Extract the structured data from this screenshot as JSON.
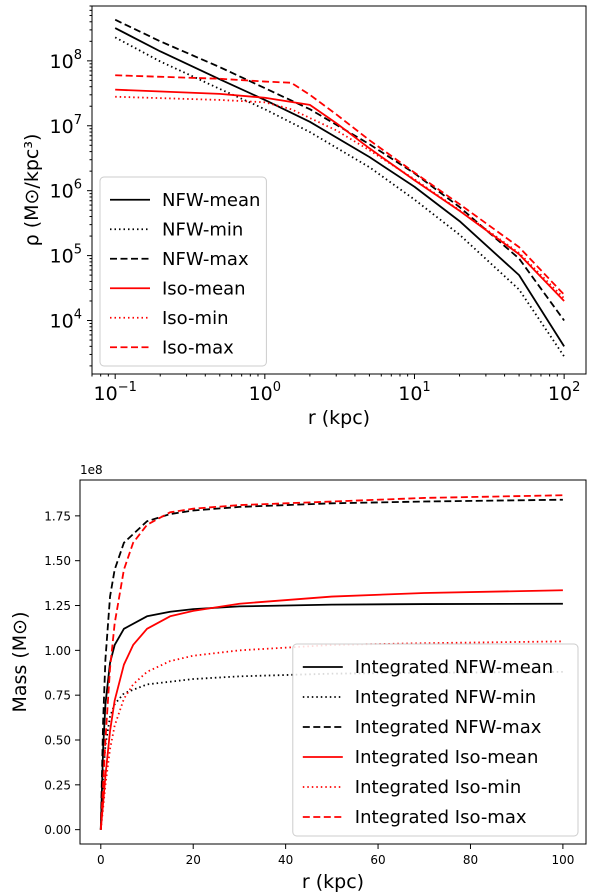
{
  "chart_data": [
    {
      "type": "line",
      "xscale": "log",
      "yscale": "log",
      "xlabel": "r (kpc)",
      "ylabel": "ρ (M⊙/kpc³)",
      "xlim": [
        0.07,
        140
      ],
      "ylim": [
        1500,
        700000000
      ],
      "x_ticks": [
        {
          "value": 0.1,
          "base": "10",
          "exp": "−1"
        },
        {
          "value": 1,
          "base": "10",
          "exp": "0"
        },
        {
          "value": 10,
          "base": "10",
          "exp": "1"
        },
        {
          "value": 100,
          "base": "10",
          "exp": "2"
        }
      ],
      "y_ticks": [
        {
          "value": 10000,
          "base": "10",
          "exp": "4"
        },
        {
          "value": 100000,
          "base": "10",
          "exp": "5"
        },
        {
          "value": 1000000,
          "base": "10",
          "exp": "6"
        },
        {
          "value": 10000000,
          "base": "10",
          "exp": "7"
        },
        {
          "value": 100000000,
          "base": "10",
          "exp": "8"
        }
      ],
      "legend_position": "lower-left",
      "series": [
        {
          "name": "NFW-mean",
          "color": "#000000",
          "style": "solid",
          "x": [
            0.1,
            0.2,
            0.5,
            1,
            2,
            5,
            10,
            20,
            50,
            100
          ],
          "y": [
            320000000,
            140000000,
            52000000,
            25000000,
            11500000,
            3300000,
            1150000,
            340000,
            50000,
            4000
          ]
        },
        {
          "name": "NFW-min",
          "color": "#000000",
          "style": "dotted",
          "x": [
            0.1,
            0.2,
            0.5,
            1,
            2,
            5,
            10,
            20,
            50,
            100
          ],
          "y": [
            230000000,
            98000000,
            37000000,
            18000000,
            8000000,
            2300000,
            730000,
            210000,
            30000,
            2800
          ]
        },
        {
          "name": "NFW-max",
          "color": "#000000",
          "style": "dashed",
          "x": [
            0.1,
            0.2,
            0.5,
            1,
            2,
            5,
            10,
            20,
            50,
            100
          ],
          "y": [
            430000000,
            200000000,
            80000000,
            38000000,
            18000000,
            5200000,
            1850000,
            560000,
            90000,
            10000
          ]
        },
        {
          "name": "Iso-mean",
          "color": "#ff0000",
          "style": "solid",
          "x": [
            0.1,
            0.5,
            1,
            2,
            3,
            5,
            10,
            20,
            50,
            100
          ],
          "y": [
            36000000,
            31000000,
            27000000,
            21000000,
            11000000,
            4500000,
            1450000,
            490000,
            105000,
            20000
          ]
        },
        {
          "name": "Iso-min",
          "color": "#ff0000",
          "style": "dotted",
          "x": [
            0.1,
            0.5,
            1,
            1.5,
            3,
            5,
            10,
            20,
            50,
            100
          ],
          "y": [
            28000000,
            25000000,
            23000000,
            18000000,
            8500000,
            4200000,
            1500000,
            500000,
            110000,
            22000
          ]
        },
        {
          "name": "Iso-max",
          "color": "#ff0000",
          "style": "dashed",
          "x": [
            0.1,
            0.5,
            1,
            1.5,
            2,
            3,
            5,
            10,
            20,
            50,
            100
          ],
          "y": [
            60000000,
            53000000,
            48000000,
            46000000,
            30000000,
            15000000,
            6000000,
            1900000,
            620000,
            135000,
            25000
          ]
        }
      ]
    },
    {
      "type": "line",
      "xscale": "linear",
      "yscale": "linear",
      "xlabel": "r (kpc)",
      "ylabel": "Mass (M⊙)",
      "offset_label": "1e8",
      "xlim": [
        -4.5,
        105
      ],
      "ylim": [
        -0.08,
        1.95
      ],
      "x_ticks": [
        "0",
        "20",
        "40",
        "60",
        "80",
        "100"
      ],
      "y_ticks": [
        "0.00",
        "0.25",
        "0.50",
        "0.75",
        "1.00",
        "1.25",
        "1.50",
        "1.75"
      ],
      "legend_position": "lower-right",
      "series": [
        {
          "name": "Integrated NFW-mean",
          "color": "#000000",
          "style": "solid",
          "x": [
            0,
            0.5,
            1,
            2,
            3,
            5,
            10,
            15,
            20,
            30,
            50,
            70,
            100
          ],
          "y": [
            0,
            0.45,
            0.7,
            0.93,
            1.03,
            1.12,
            1.19,
            1.215,
            1.23,
            1.245,
            1.255,
            1.258,
            1.26
          ]
        },
        {
          "name": "Integrated NFW-min",
          "color": "#000000",
          "style": "dotted",
          "x": [
            0,
            0.5,
            1,
            2,
            3,
            5,
            10,
            20,
            30,
            50,
            70,
            100
          ],
          "y": [
            0,
            0.3,
            0.47,
            0.63,
            0.7,
            0.76,
            0.81,
            0.84,
            0.855,
            0.87,
            0.875,
            0.88
          ]
        },
        {
          "name": "Integrated NFW-max",
          "color": "#000000",
          "style": "dashed",
          "x": [
            0,
            0.5,
            1,
            2,
            3,
            5,
            10,
            15,
            20,
            30,
            50,
            70,
            100
          ],
          "y": [
            0,
            0.6,
            0.95,
            1.3,
            1.45,
            1.6,
            1.72,
            1.76,
            1.78,
            1.8,
            1.82,
            1.83,
            1.84
          ]
        },
        {
          "name": "Integrated Iso-mean",
          "color": "#ff0000",
          "style": "solid",
          "x": [
            0,
            0.5,
            1,
            2,
            3,
            5,
            7,
            10,
            15,
            20,
            30,
            50,
            70,
            100
          ],
          "y": [
            0,
            0.15,
            0.3,
            0.55,
            0.72,
            0.92,
            1.03,
            1.12,
            1.19,
            1.22,
            1.26,
            1.3,
            1.32,
            1.335
          ]
        },
        {
          "name": "Integrated Iso-min",
          "color": "#ff0000",
          "style": "dotted",
          "x": [
            0,
            0.5,
            1,
            2,
            3,
            5,
            7,
            10,
            15,
            20,
            30,
            50,
            70,
            100
          ],
          "y": [
            0,
            0.12,
            0.25,
            0.45,
            0.58,
            0.73,
            0.81,
            0.88,
            0.94,
            0.97,
            1.0,
            1.03,
            1.04,
            1.05
          ]
        },
        {
          "name": "Integrated Iso-max",
          "color": "#ff0000",
          "style": "dashed",
          "x": [
            0,
            0.5,
            1,
            2,
            3,
            5,
            7,
            10,
            15,
            20,
            30,
            50,
            70,
            100
          ],
          "y": [
            0,
            0.25,
            0.5,
            0.9,
            1.15,
            1.45,
            1.6,
            1.7,
            1.77,
            1.79,
            1.81,
            1.83,
            1.85,
            1.865
          ]
        }
      ]
    }
  ]
}
